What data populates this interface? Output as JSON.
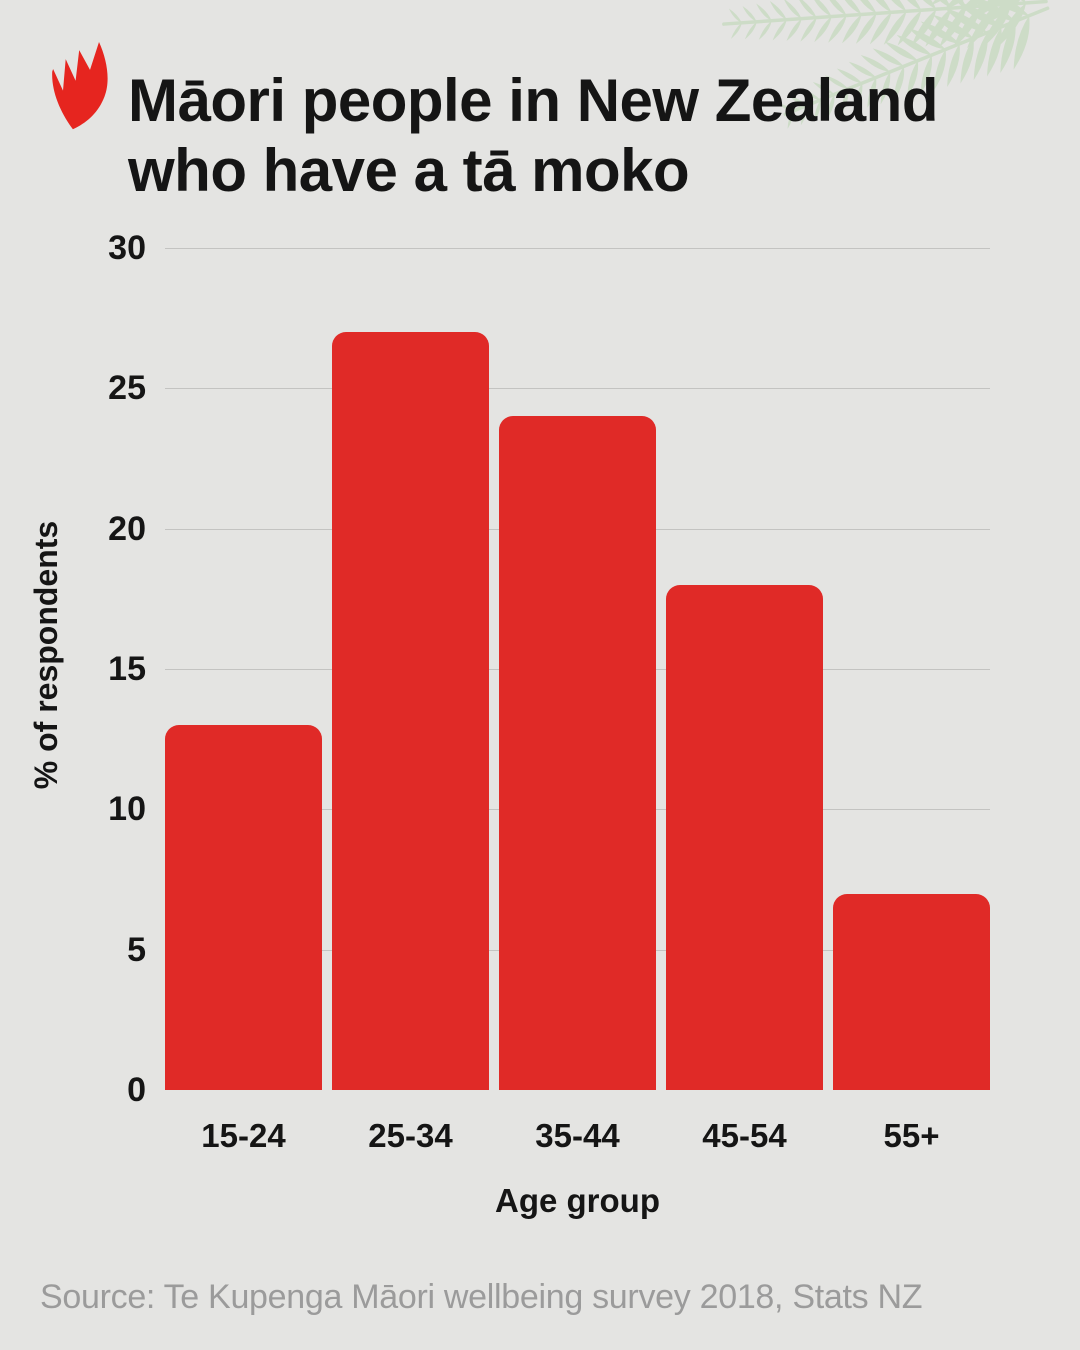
{
  "header": {
    "title_line1": "Māori people in New Zealand",
    "title_line2": "who have a tā moko",
    "logo_icon": "sbs-flame-logo"
  },
  "chart_data": {
    "type": "bar",
    "title": "Māori people in New Zealand who have a tā moko",
    "categories": [
      "15-24",
      "25-34",
      "35-44",
      "45-54",
      "55+"
    ],
    "values": [
      13,
      27,
      24,
      18,
      7
    ],
    "xlabel": "Age group",
    "ylabel": "% of respondents",
    "ylim": [
      0,
      30
    ],
    "yticks": [
      0,
      5,
      10,
      15,
      20,
      25,
      30
    ],
    "grid": true,
    "legend": "none",
    "bar_color": "#e02a27"
  },
  "footer": {
    "source_text": "Source: Te Kupenga Māori wellbeing survey 2018, Stats NZ"
  },
  "colors": {
    "background": "#e4e4e2",
    "text": "#151515",
    "bar": "#e02a27",
    "logo_red": "#e6251f",
    "fern_green": "#cddcc7",
    "gridline": "#c3c3c1",
    "source_gray": "#9b9b9b"
  }
}
